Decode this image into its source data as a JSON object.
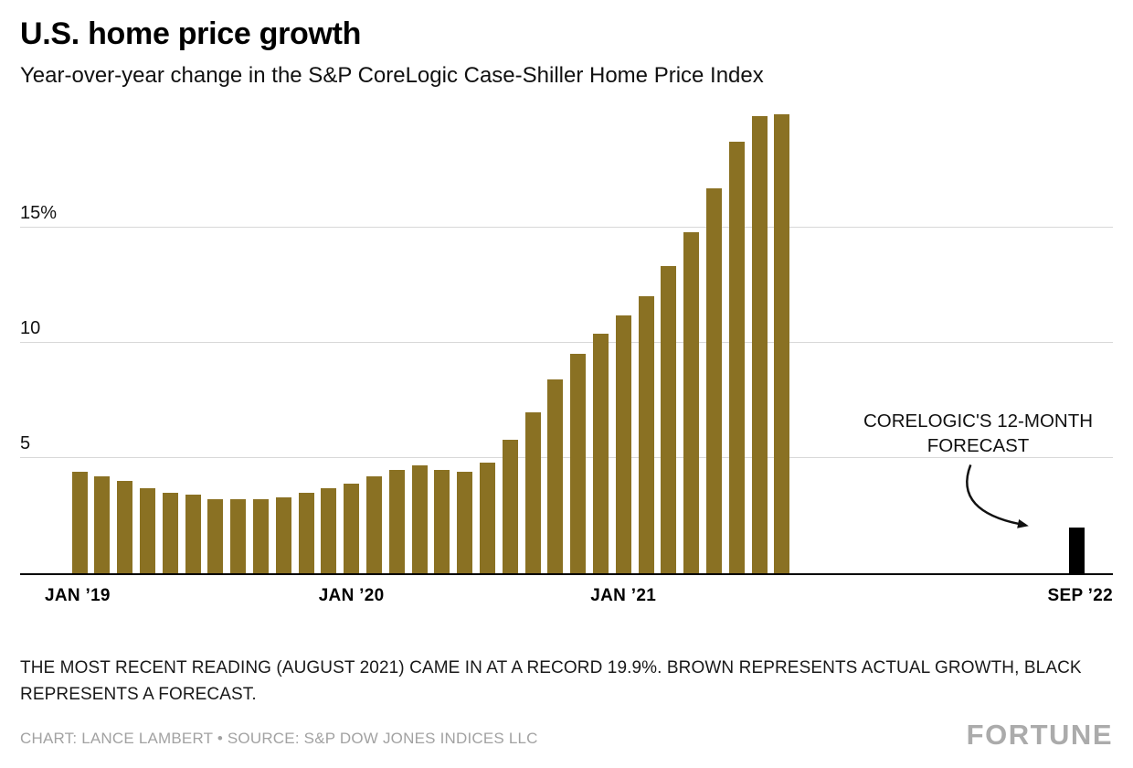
{
  "header": {
    "title": "U.S. home price growth",
    "subtitle": "Year-over-year change in the S&P CoreLogic Case-Shiller Home Price Index"
  },
  "chart_data": {
    "type": "bar",
    "title": "U.S. home price growth",
    "subtitle": "Year-over-year change in the S&P CoreLogic Case-Shiller Home Price Index",
    "unit": "percent year-over-year",
    "ylim": [
      0,
      20.4
    ],
    "grid": "horizontal",
    "legend_position": "none",
    "yticks": [
      {
        "value": 5,
        "label": "5"
      },
      {
        "value": 10,
        "label": "10"
      },
      {
        "value": 15,
        "label": "15%"
      }
    ],
    "x_axis": {
      "slots": 45,
      "ticks": [
        {
          "slot": 0,
          "label": "JAN ’19",
          "align": "left"
        },
        {
          "slot": 12,
          "label": "JAN ’20",
          "align": "center"
        },
        {
          "slot": 24,
          "label": "JAN ’21",
          "align": "center"
        },
        {
          "slot": 44,
          "label": "SEP ’22",
          "align": "right"
        }
      ]
    },
    "series": [
      {
        "name": "Actual growth",
        "color": "#8a7123",
        "start_slot": 0,
        "x": [
          "Jan 2019",
          "Feb 2019",
          "Mar 2019",
          "Apr 2019",
          "May 2019",
          "Jun 2019",
          "Jul 2019",
          "Aug 2019",
          "Sep 2019",
          "Oct 2019",
          "Nov 2019",
          "Dec 2019",
          "Jan 2020",
          "Feb 2020",
          "Mar 2020",
          "Apr 2020",
          "May 2020",
          "Jun 2020",
          "Jul 2020",
          "Aug 2020",
          "Sep 2020",
          "Oct 2020",
          "Nov 2020",
          "Dec 2020",
          "Jan 2021",
          "Feb 2021",
          "Mar 2021",
          "Apr 2021",
          "May 2021",
          "Jun 2021",
          "Jul 2021",
          "Aug 2021"
        ],
        "values": [
          4.4,
          4.2,
          4.0,
          3.7,
          3.5,
          3.4,
          3.2,
          3.2,
          3.2,
          3.3,
          3.5,
          3.7,
          3.9,
          4.2,
          4.5,
          4.7,
          4.5,
          4.4,
          4.8,
          5.8,
          7.0,
          8.4,
          9.5,
          10.4,
          11.2,
          12.0,
          13.3,
          14.8,
          16.7,
          18.7,
          19.8,
          19.9
        ]
      },
      {
        "name": "CoreLogic forecast",
        "color": "#000000",
        "start_slot": 44,
        "x": [
          "Sep 2022"
        ],
        "values": [
          2.0
        ]
      }
    ],
    "annotation": {
      "text": "CORELOGIC'S 12-MONTH FORECAST"
    }
  },
  "notes": {
    "caption": "THE MOST RECENT READING (AUGUST 2021) CAME IN AT A RECORD 19.9%. BROWN REPRESENTS ACTUAL GROWTH, BLACK REPRESENTS A FORECAST.",
    "credit": "CHART: LANCE LAMBERT • SOURCE: S&P DOW JONES INDICES LLC"
  },
  "branding": {
    "logo_text": "FORTUNE"
  }
}
